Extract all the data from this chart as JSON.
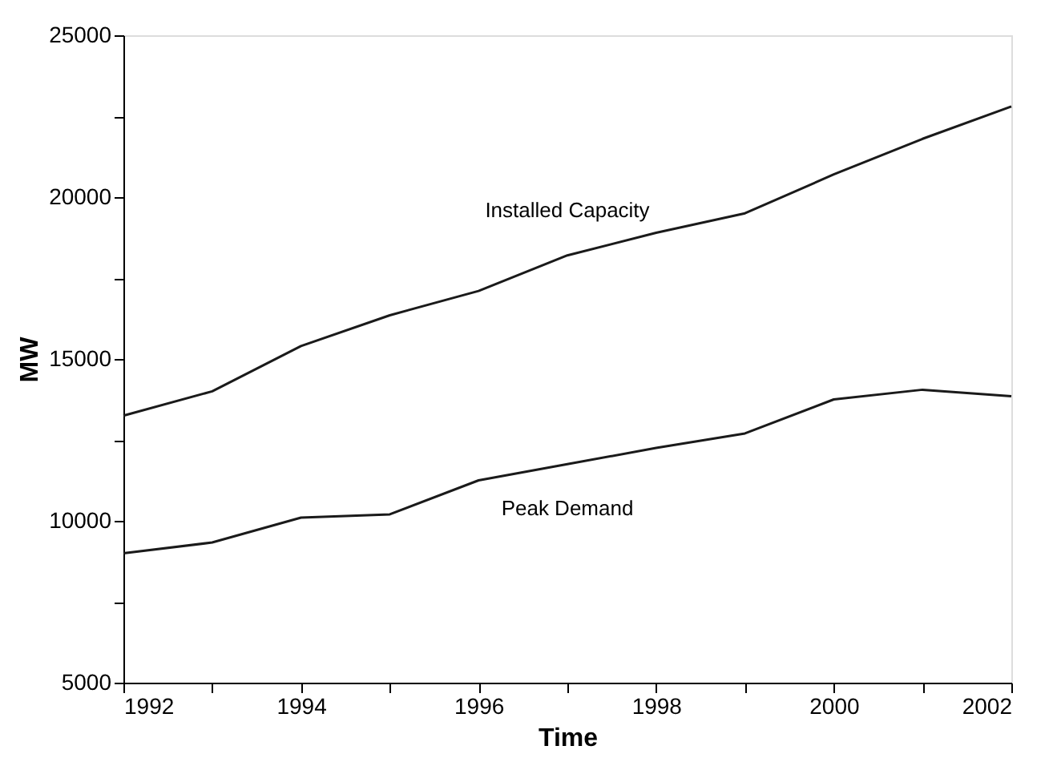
{
  "chart_data": {
    "type": "line",
    "xlabel": "Time",
    "ylabel": "MW",
    "x": [
      1992,
      1993,
      1994,
      1995,
      1996,
      1997,
      1998,
      1999,
      2000,
      2001,
      2002
    ],
    "series": [
      {
        "name": "Installed Capacity",
        "color": "#1a1a1a",
        "values": [
          13250,
          14000,
          15400,
          16350,
          17100,
          18200,
          18900,
          19500,
          20700,
          21800,
          22800
        ]
      },
      {
        "name": "Peak Demand",
        "color": "#1a1a1a",
        "values": [
          9000,
          9330,
          10100,
          10200,
          11250,
          11750,
          12250,
          12700,
          13750,
          14050,
          13850
        ]
      }
    ],
    "xlim": [
      1992,
      2002
    ],
    "xticks": [
      1992,
      {
        "value": 1993,
        "label": null
      },
      1994,
      {
        "value": 1995,
        "label": null
      },
      1996,
      {
        "value": 1997,
        "label": null
      },
      1998,
      {
        "value": 1999,
        "label": null
      },
      2000,
      {
        "value": 2001,
        "label": null
      },
      2002
    ],
    "ylim": [
      5000,
      25000
    ],
    "yticks": [
      5000,
      {
        "value": 7500,
        "label": null
      },
      10000,
      {
        "value": 12500,
        "label": null
      },
      15000,
      {
        "value": 17500,
        "label": null
      },
      20000,
      {
        "value": 22500,
        "label": null
      },
      25000
    ],
    "grid": false,
    "marker": "none",
    "line_style": "solid"
  }
}
